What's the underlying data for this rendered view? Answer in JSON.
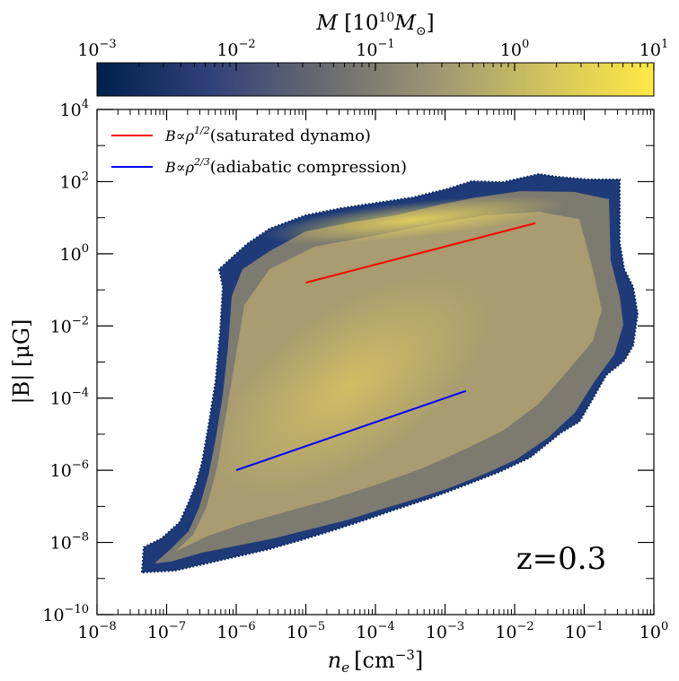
{
  "chart_data": {
    "type": "heatmap",
    "title": "",
    "annotation": "z=0.3",
    "x_axis": {
      "label_sym": "n",
      "label_sub": "e",
      "label_unit": "[cm",
      "label_unit_exp": "−3",
      "label_close": "]",
      "scale": "log",
      "xlim_log10": [
        -8,
        0
      ],
      "ticks": [
        {
          "base": "10",
          "exp": "−8",
          "log": -8
        },
        {
          "base": "10",
          "exp": "−7",
          "log": -7
        },
        {
          "base": "10",
          "exp": "−6",
          "log": -6
        },
        {
          "base": "10",
          "exp": "−5",
          "log": -5
        },
        {
          "base": "10",
          "exp": "−4",
          "log": -4
        },
        {
          "base": "10",
          "exp": "−3",
          "log": -3
        },
        {
          "base": "10",
          "exp": "−2",
          "log": -2
        },
        {
          "base": "10",
          "exp": "−1",
          "log": -1
        },
        {
          "base": "10",
          "exp": "0",
          "log": 0
        }
      ]
    },
    "y_axis": {
      "label": "|B| [μG]",
      "scale": "log",
      "ylim_log10": [
        -10,
        4
      ],
      "ticks": [
        {
          "base": "10",
          "exp": "4",
          "log": 4
        },
        {
          "base": "10",
          "exp": "2",
          "log": 2
        },
        {
          "base": "10",
          "exp": "0",
          "log": 0
        },
        {
          "base": "10",
          "exp": "−2",
          "log": -2
        },
        {
          "base": "10",
          "exp": "−4",
          "log": -4
        },
        {
          "base": "10",
          "exp": "−6",
          "log": -6
        },
        {
          "base": "10",
          "exp": "−8",
          "log": -8
        },
        {
          "base": "10",
          "exp": "−10",
          "log": -10
        }
      ]
    },
    "colorbar": {
      "label_sym": "M",
      "label_rest": " [10",
      "label_exp": "10",
      "label_tail": "M",
      "label_sub": "⊙",
      "label_close": "]",
      "scale": "log",
      "range_log10": [
        -3,
        1
      ],
      "ticks": [
        {
          "base": "10",
          "exp": "−3",
          "log": -3
        },
        {
          "base": "10",
          "exp": "−2",
          "log": -2
        },
        {
          "base": "10",
          "exp": "−1",
          "log": -1
        },
        {
          "base": "10",
          "exp": "0",
          "log": 0
        },
        {
          "base": "10",
          "exp": "1",
          "log": 1
        }
      ],
      "colormap": [
        "#00204c",
        "#30407a",
        "#676970",
        "#9b9474",
        "#d0c35e",
        "#ffe945"
      ]
    },
    "series": [
      {
        "name": "saturated dynamo",
        "legend_prefix": "B∝ρ",
        "legend_exp": "1/2",
        "legend_text": "(saturated dynamo)",
        "color": "#ff0000",
        "x_log10": [
          -5,
          -1.7
        ],
        "y_log10": [
          -0.8,
          0.85
        ]
      },
      {
        "name": "adiabatic compression",
        "legend_prefix": "B∝ρ",
        "legend_exp": "2/3",
        "legend_text": "(adiabatic compression)",
        "color": "#0000ff",
        "x_log10": [
          -6,
          -2.7
        ],
        "y_log10": [
          -6.0,
          -3.8
        ]
      }
    ]
  }
}
